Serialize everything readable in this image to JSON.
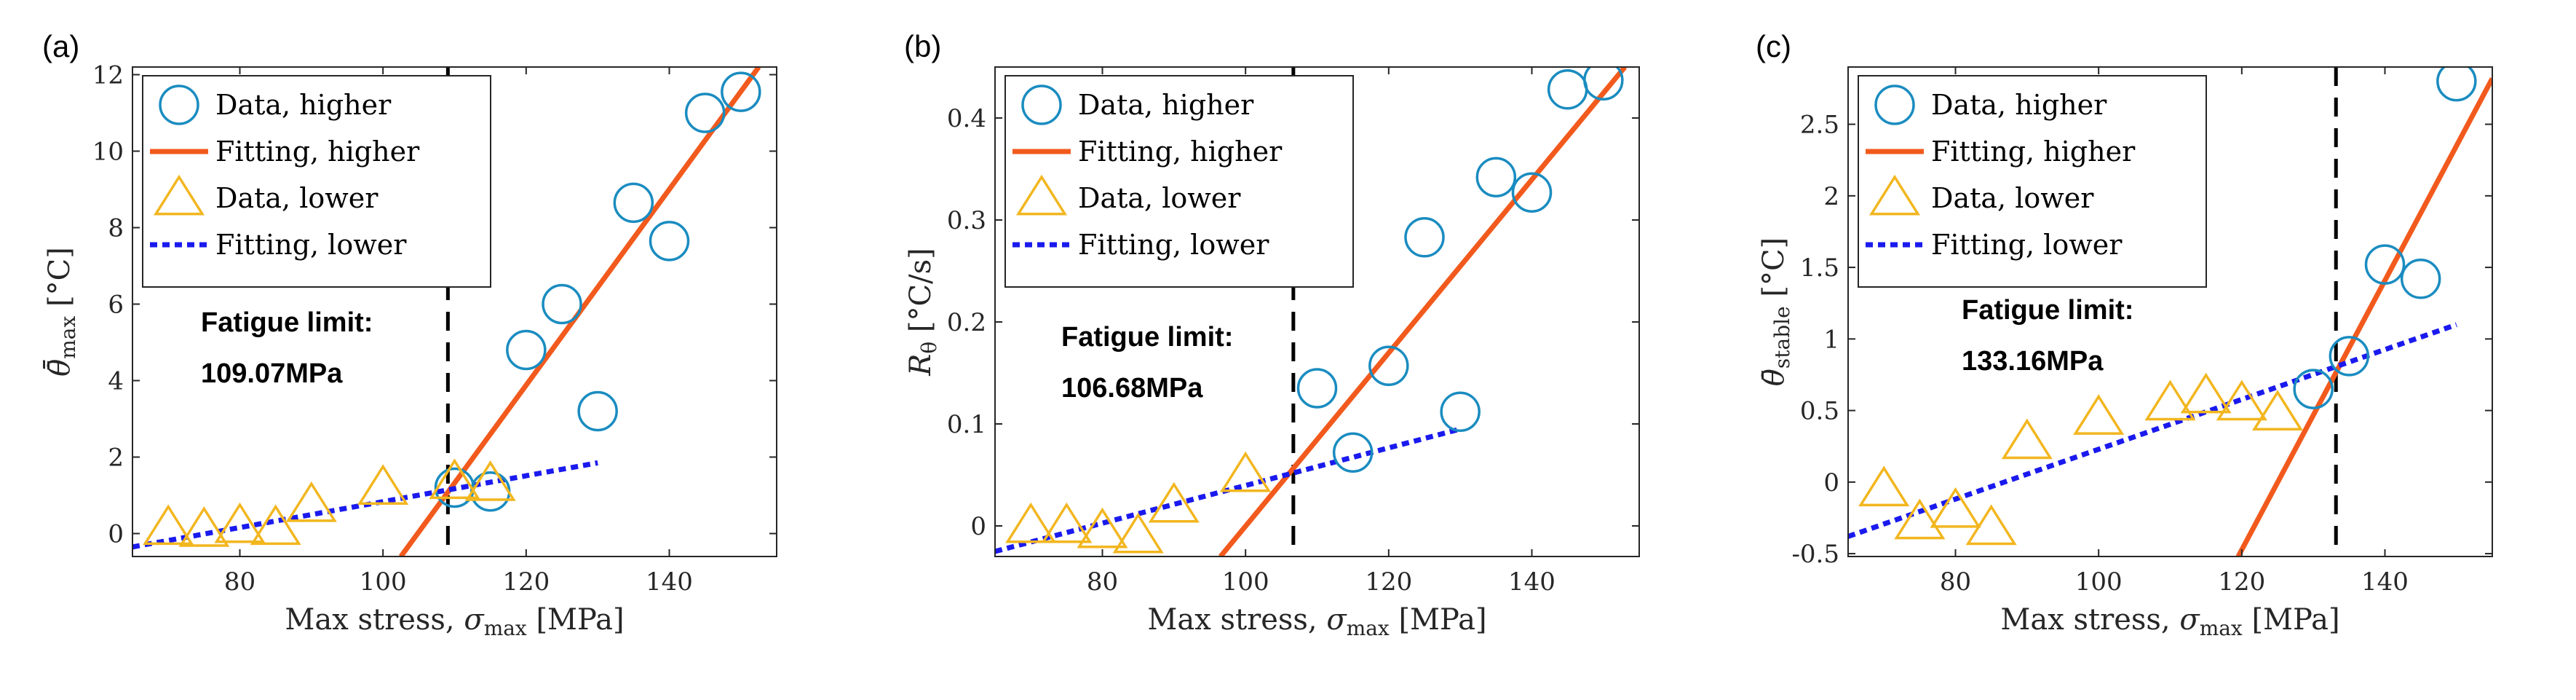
{
  "colors": {
    "higher_data": "#1a8cc0",
    "higher_fit": "#f25a1d",
    "lower_data": "#f2b61f",
    "lower_fit": "#1a1aee",
    "limit_line": "#000000"
  },
  "chart_data": [
    {
      "type": "scatter",
      "panel_label": "(a)",
      "xlabel": "Max stress, σmax [MPa]",
      "xlabel_main": "Max stress, ",
      "xlabel_sym": "σ",
      "xlabel_sub": "max",
      "xlabel_unit": " [MPa]",
      "ylabel_sym": "θ̄̄",
      "ylabel_sub": "max",
      "ylabel_unit": " [°C]",
      "xlim": [
        65,
        155
      ],
      "ylim": [
        -0.6,
        12.2
      ],
      "xticks": [
        80,
        100,
        120,
        140
      ],
      "yticks": [
        0,
        2,
        4,
        6,
        8,
        10,
        12
      ],
      "ytick_labels": [
        "0",
        "2",
        "4",
        "6",
        "8",
        "10",
        "12"
      ],
      "legend": [
        "Data, higher",
        "Fitting, higher",
        "Data, lower",
        "Fitting, lower"
      ],
      "annotation_title": "Fatigue limit:",
      "annotation_value": "109.07MPa",
      "fatigue_limit": 109.07,
      "series": [
        {
          "name": "Data, higher",
          "kind": "circle",
          "x": [
            110,
            115,
            120,
            125,
            130,
            135,
            140,
            145,
            150
          ],
          "y": [
            1.2,
            1.1,
            4.8,
            6.0,
            3.2,
            8.65,
            7.65,
            11.0,
            11.55
          ]
        },
        {
          "name": "Fitting, higher",
          "kind": "solid",
          "x": [
            102.5,
            152.5
          ],
          "y": [
            -0.6,
            12.2
          ]
        },
        {
          "name": "Data, lower",
          "kind": "triangle",
          "x": [
            70,
            75,
            80,
            85,
            90,
            100,
            110,
            115
          ],
          "y": [
            0.15,
            0.1,
            0.2,
            0.15,
            0.75,
            1.2,
            1.35,
            1.3
          ]
        },
        {
          "name": "Fitting, lower",
          "kind": "dotted",
          "x": [
            65,
            130
          ],
          "y": [
            -0.35,
            1.85
          ]
        }
      ]
    },
    {
      "type": "scatter",
      "panel_label": "(b)",
      "xlabel": "Max stress, σmax [MPa]",
      "xlabel_main": "Max stress, ",
      "xlabel_sym": "σ",
      "xlabel_sub": "max",
      "xlabel_unit": " [MPa]",
      "ylabel_sym": "R",
      "ylabel_sub": "θ",
      "ylabel_unit": " [°C/s]",
      "xlim": [
        65,
        155
      ],
      "ylim": [
        -0.03,
        0.45
      ],
      "xticks": [
        80,
        100,
        120,
        140
      ],
      "yticks": [
        0,
        0.1,
        0.2,
        0.3,
        0.4
      ],
      "ytick_labels": [
        "0",
        "0.1",
        "0.2",
        "0.3",
        "0.4"
      ],
      "legend": [
        "Data, higher",
        "Fitting, higher",
        "Data, lower",
        "Fitting, lower"
      ],
      "annotation_title": "Fatigue limit:",
      "annotation_value": "106.68MPa",
      "fatigue_limit": 106.68,
      "series": [
        {
          "name": "Data, higher",
          "kind": "circle",
          "x": [
            110,
            115,
            120,
            125,
            130,
            135,
            140,
            145,
            150
          ],
          "y": [
            0.135,
            0.072,
            0.157,
            0.283,
            0.112,
            0.342,
            0.327,
            0.428,
            0.437
          ]
        },
        {
          "name": "Fitting, higher",
          "kind": "solid",
          "x": [
            96.5,
            153.0
          ],
          "y": [
            -0.03,
            0.45
          ]
        },
        {
          "name": "Data, lower",
          "kind": "triangle",
          "x": [
            70,
            75,
            80,
            85,
            90,
            100
          ],
          "y": [
            0.0,
            0.0,
            -0.005,
            -0.01,
            0.02,
            0.05
          ]
        },
        {
          "name": "Fitting, lower",
          "kind": "dotted",
          "x": [
            65,
            130
          ],
          "y": [
            -0.025,
            0.095
          ]
        }
      ]
    },
    {
      "type": "scatter",
      "panel_label": "(c)",
      "xlabel": "Max stress, σmax [MPa]",
      "xlabel_main": "Max stress, ",
      "xlabel_sym": "σ",
      "xlabel_sub": "max",
      "xlabel_unit": " [MPa]",
      "ylabel_sym": "θ̄",
      "ylabel_sub": "stable",
      "ylabel_unit": " [°C]",
      "xlim": [
        65,
        155
      ],
      "ylim": [
        -0.52,
        2.9
      ],
      "xticks": [
        80,
        100,
        120,
        140
      ],
      "yticks": [
        -0.5,
        0,
        0.5,
        1,
        1.5,
        2,
        2.5
      ],
      "ytick_labels": [
        "-0.5",
        "0",
        "0.5",
        "1",
        "1.5",
        "2",
        "2.5"
      ],
      "legend": [
        "Data, higher",
        "Fitting, higher",
        "Data, lower",
        "Fitting, lower"
      ],
      "annotation_title": "Fatigue limit:",
      "annotation_value": "133.16MPa",
      "fatigue_limit": 133.16,
      "series": [
        {
          "name": "Data, higher",
          "kind": "circle",
          "x": [
            130,
            135,
            140,
            145,
            150
          ],
          "y": [
            0.65,
            0.88,
            1.52,
            1.42,
            2.8
          ]
        },
        {
          "name": "Fitting, higher",
          "kind": "solid",
          "x": [
            119.5,
            155
          ],
          "y": [
            -0.52,
            2.82
          ]
        },
        {
          "name": "Data, lower",
          "kind": "triangle",
          "x": [
            70,
            75,
            80,
            85,
            90,
            100,
            110,
            115,
            120,
            125
          ],
          "y": [
            -0.05,
            -0.28,
            -0.2,
            -0.32,
            0.28,
            0.45,
            0.55,
            0.6,
            0.55,
            0.48
          ]
        },
        {
          "name": "Fitting, lower",
          "kind": "dotted",
          "x": [
            65,
            150
          ],
          "y": [
            -0.38,
            1.1
          ]
        }
      ]
    }
  ]
}
